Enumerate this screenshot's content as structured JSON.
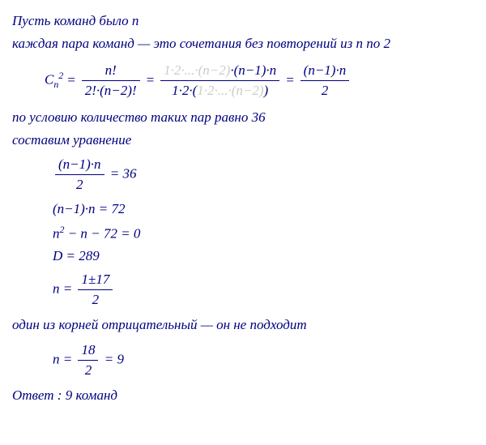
{
  "l1": "Пусть команд было n",
  "l2": "каждая пара команд — это сочетания без повторений из n по 2",
  "f1": {
    "lhs_base": "C",
    "lhs_sub": "n",
    "lhs_sup": "2",
    "part1_num": "n!",
    "part1_den": "2!·(n−2)!",
    "part2_num_cancel": "1·2·...·(n−2)",
    "part2_num_rest": "·(n−1)·n",
    "part2_den_start": "1·2·(",
    "part2_den_cancel": "1·2·...·(n−2)",
    "part2_den_end": ")",
    "part3_num": "(n−1)·n",
    "part3_den": "2"
  },
  "l3": "по условию количество таких пар равно 36",
  "l4": "составим уравнение",
  "eq1_num": "(n−1)·n",
  "eq1_den": "2",
  "eq1_rhs": " = 36",
  "eq2": "(n−1)·n = 72",
  "eq3_a": "n",
  "eq3_sup": "2",
  "eq3_b": " − n − 72 = 0",
  "eq4": "D = 289",
  "eq5_lhs": "n = ",
  "eq5_num": "1±17",
  "eq5_den": "2",
  "l5": "один из корней отрицательный — он не подходит",
  "eq6_lhs": "n = ",
  "eq6_num": "18",
  "eq6_den": "2",
  "eq6_rhs": " = 9",
  "answer": "Ответ : 9 команд"
}
